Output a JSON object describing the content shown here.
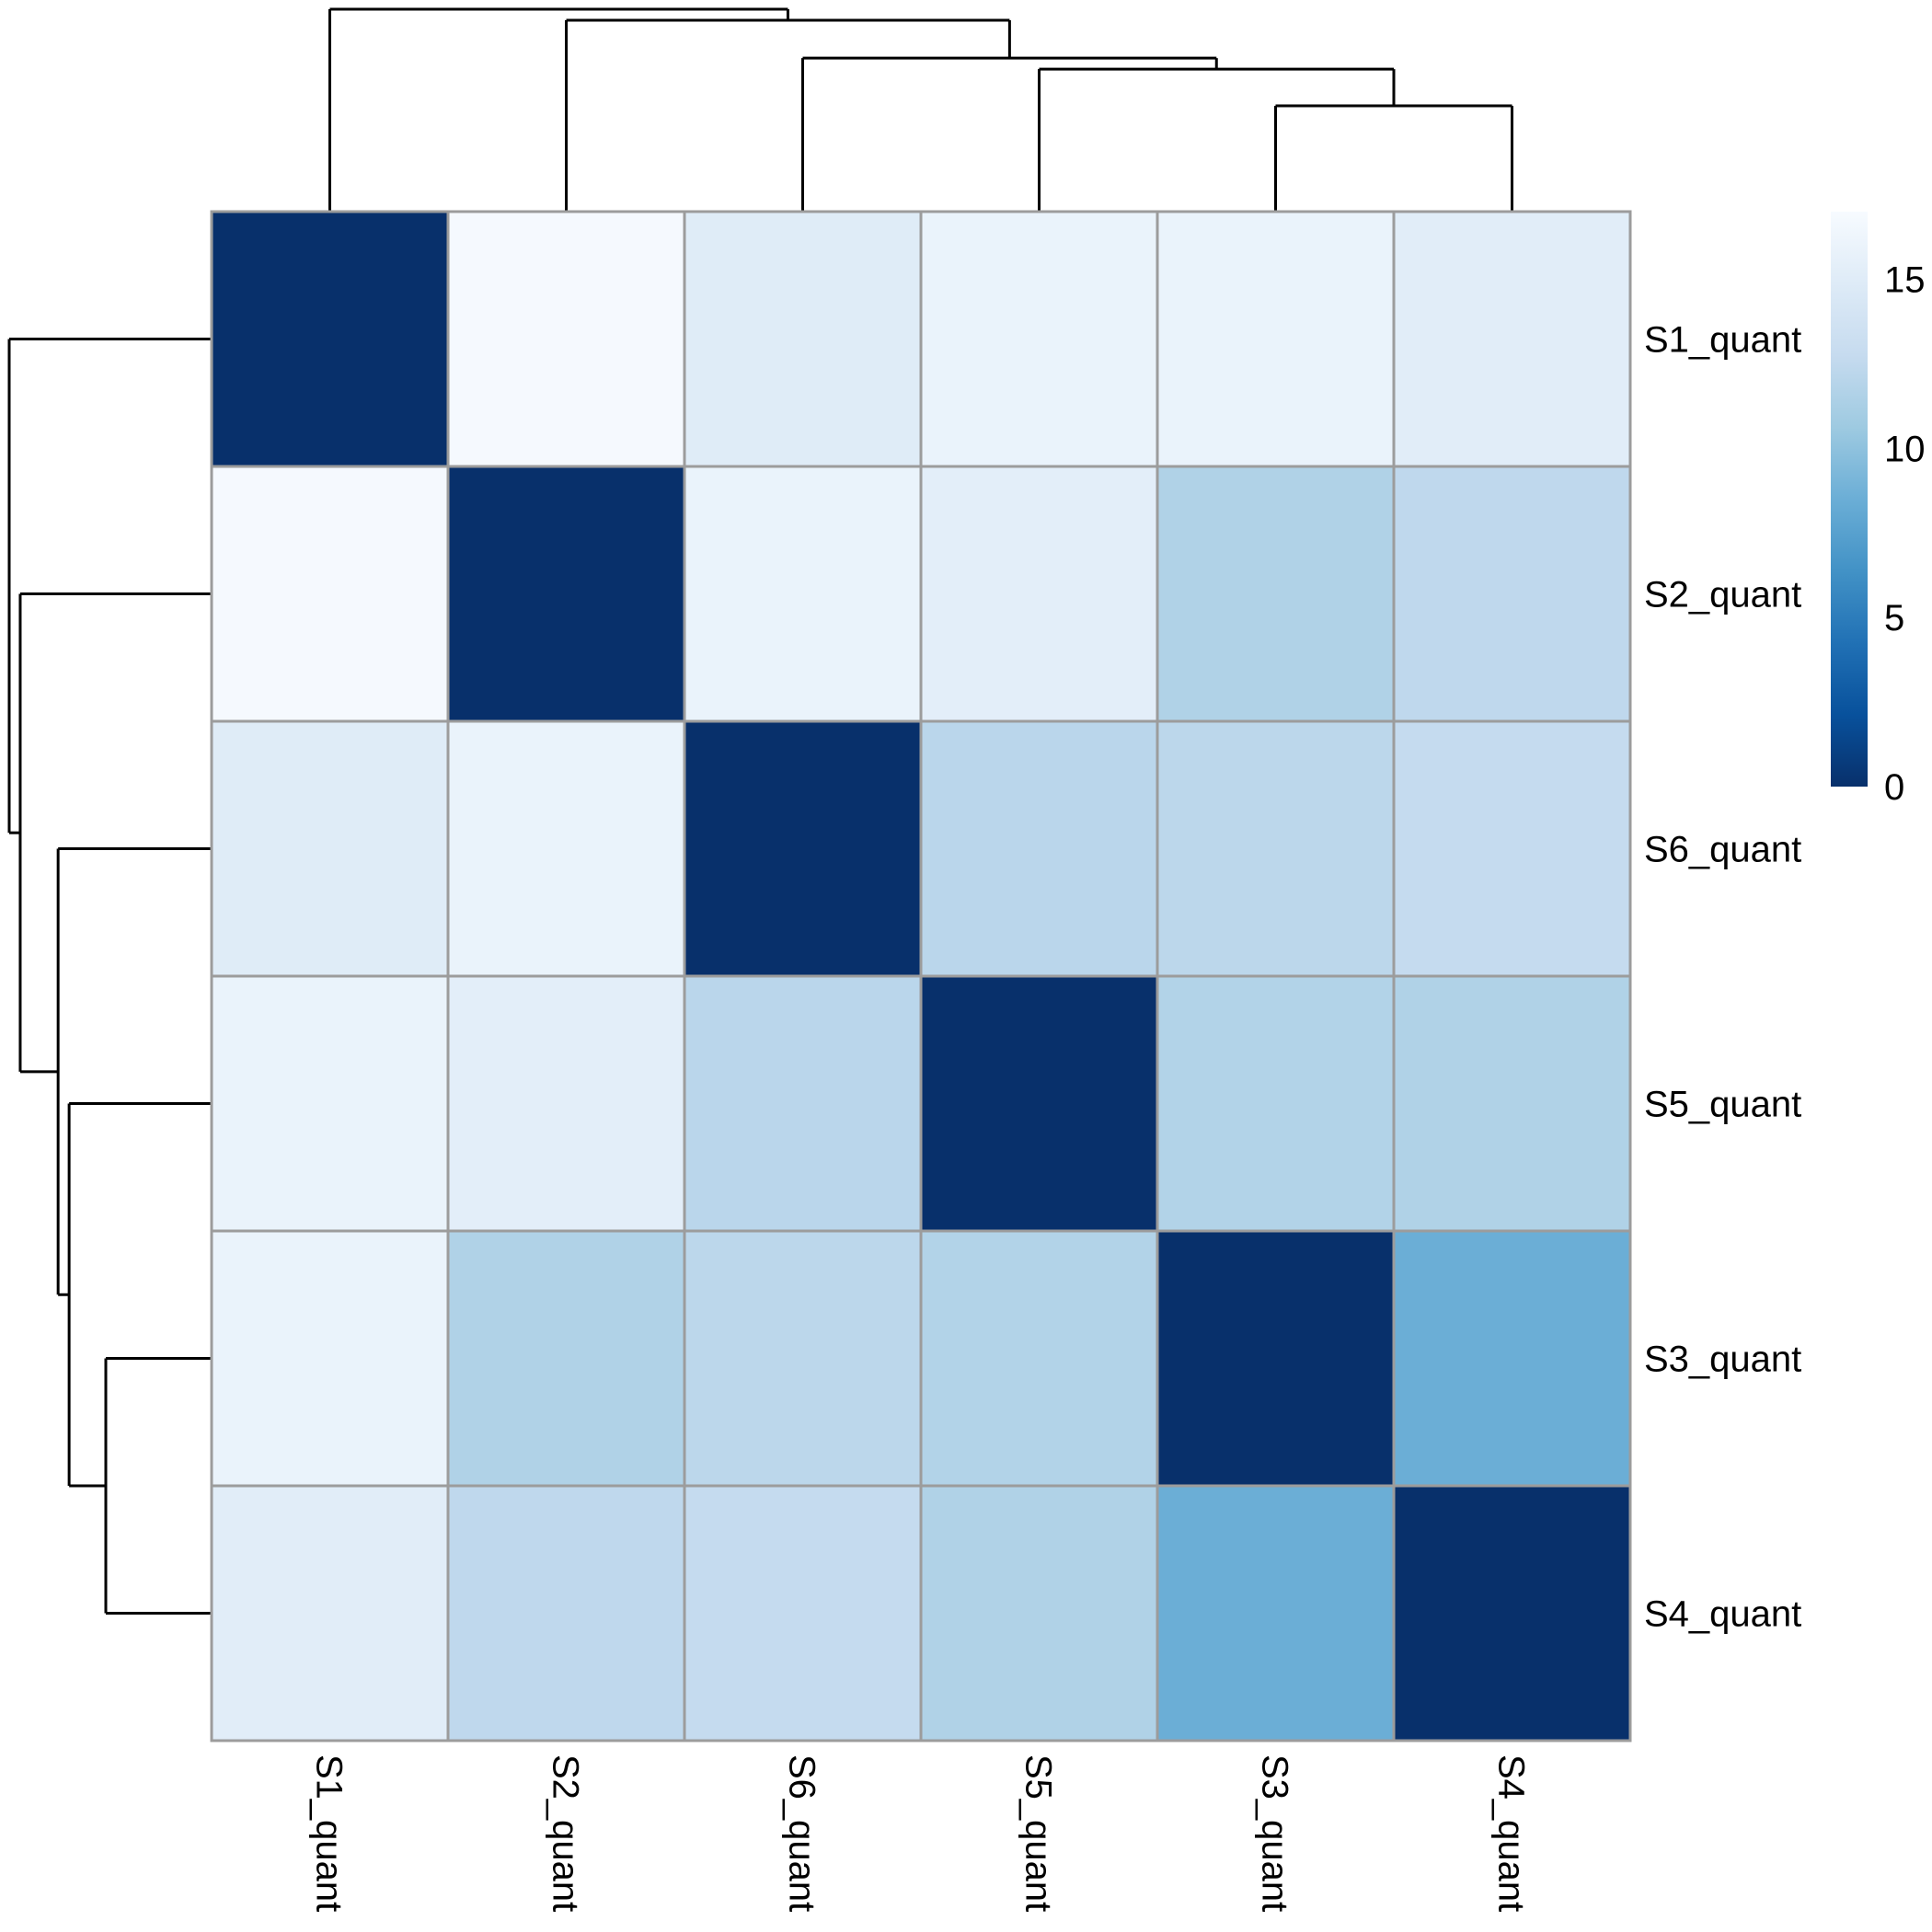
{
  "chart_data": {
    "type": "heatmap",
    "title": "",
    "row_labels": [
      "S1_quant",
      "S2_quant",
      "S6_quant",
      "S5_quant",
      "S3_quant",
      "S4_quant"
    ],
    "col_labels": [
      "S1_quant",
      "S2_quant",
      "S6_quant",
      "S5_quant",
      "S3_quant",
      "S4_quant"
    ],
    "values": [
      [
        0.0,
        16.8,
        15.0,
        15.9,
        15.9,
        15.1
      ],
      [
        16.8,
        0.0,
        15.9,
        15.3,
        11.6,
        12.4
      ],
      [
        15.0,
        15.9,
        0.0,
        12.1,
        12.2,
        12.7
      ],
      [
        15.9,
        15.3,
        12.1,
        0.0,
        11.7,
        11.6
      ],
      [
        15.9,
        11.6,
        12.2,
        11.7,
        0.0,
        8.5
      ],
      [
        15.1,
        12.4,
        12.7,
        11.6,
        8.5,
        0.0
      ]
    ],
    "color_scale": {
      "min": 0,
      "max": 17,
      "stops": [
        "#08306b",
        "#08519c",
        "#2171b5",
        "#4292c6",
        "#6baed6",
        "#9ecae1",
        "#c6dbef",
        "#deebf7",
        "#f7fbff"
      ]
    },
    "legend": {
      "placement": "top-right",
      "ticks": [
        0,
        5,
        10,
        15
      ],
      "tick_labels": [
        "0",
        "5",
        "10",
        "15"
      ]
    },
    "dendrogram": {
      "merges": [
        {
          "a": "S3_quant",
          "b": "S4_quant",
          "height": 8.5
        },
        {
          "a": "S5_quant",
          "b": "S3_quant+S4_quant",
          "height": 11.5
        },
        {
          "a": "S6_quant",
          "b": "S5_quant+S3_quant+S4_quant",
          "height": 12.4
        },
        {
          "a": "S2_quant",
          "b": "S6_quant+S5_quant+S3_quant+S4_quant",
          "height": 15.5
        },
        {
          "a": "S1_quant",
          "b": "S2_quant+S6_quant+S5_quant+S3_quant+S4_quant",
          "height": 16.4
        }
      ]
    }
  }
}
